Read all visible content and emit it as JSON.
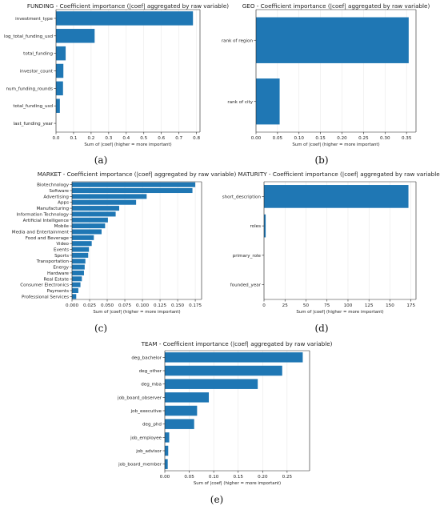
{
  "figure": {
    "bar_color": "#1f77b4",
    "captions": [
      "(a)",
      "(b)",
      "(c)",
      "(d)",
      "(e)"
    ]
  },
  "chart_data": [
    {
      "type": "bar",
      "orientation": "horizontal",
      "title": "FUNDING - Coefficient importance (|coef| aggregated by raw variable)",
      "xlabel": "Sum of |coef| (higher = more important)",
      "ylabel": "",
      "categories": [
        "investment_type",
        "log_total_funding_usd",
        "total_funding",
        "investor_count",
        "num_funding_rounds",
        "total_funding_usd",
        "last_funding_year"
      ],
      "values": [
        0.78,
        0.22,
        0.055,
        0.042,
        0.04,
        0.022,
        0.0
      ],
      "xlim": [
        0,
        0.82
      ],
      "xticks": [
        0.0,
        0.1,
        0.2,
        0.3,
        0.4,
        0.5,
        0.6,
        0.7,
        0.8
      ],
      "xtick_labels": [
        "0.0",
        "0.1",
        "0.2",
        "0.3",
        "0.4",
        "0.5",
        "0.6",
        "0.7",
        "0.8"
      ],
      "grid": "x"
    },
    {
      "type": "bar",
      "orientation": "horizontal",
      "title": "GEO - Coefficient importance (|coef| aggregated by raw variable)",
      "xlabel": "Sum of |coef| (higher = more important)",
      "ylabel": "",
      "categories": [
        "rank of region",
        "rank of city"
      ],
      "values": [
        0.355,
        0.055
      ],
      "xlim": [
        0,
        0.372
      ],
      "xticks": [
        0.0,
        0.05,
        0.1,
        0.15,
        0.2,
        0.25,
        0.3,
        0.35
      ],
      "xtick_labels": [
        "0.00",
        "0.05",
        "0.10",
        "0.15",
        "0.20",
        "0.25",
        "0.30",
        "0.35"
      ],
      "grid": "x"
    },
    {
      "type": "bar",
      "orientation": "horizontal",
      "title": "MARKET - Coefficient importance (|coef| aggregated by raw variable)",
      "xlabel": "Sum of |coef| (higher = more important)",
      "ylabel": "",
      "categories": [
        "Biotechnology",
        "Software",
        "Advertising",
        "Apps",
        "Manufacturing",
        "Information Technology",
        "Artificial Intelligence",
        "Mobile",
        "Media and Entertainment",
        "Food and Beverage",
        "Video",
        "Events",
        "Sports",
        "Transportation",
        "Energy",
        "Hardware",
        "Real Estate",
        "Consumer Electronics",
        "Payments",
        "Professional Services"
      ],
      "values": [
        0.175,
        0.171,
        0.106,
        0.091,
        0.067,
        0.062,
        0.051,
        0.047,
        0.042,
        0.031,
        0.028,
        0.024,
        0.023,
        0.019,
        0.018,
        0.017,
        0.014,
        0.012,
        0.009,
        0.006
      ],
      "xlim": [
        0,
        0.184
      ],
      "xticks": [
        0.0,
        0.025,
        0.05,
        0.075,
        0.1,
        0.125,
        0.15,
        0.175
      ],
      "xtick_labels": [
        "0.000",
        "0.025",
        "0.050",
        "0.075",
        "0.100",
        "0.125",
        "0.150",
        "0.175"
      ],
      "grid": "x"
    },
    {
      "type": "bar",
      "orientation": "horizontal",
      "title": "MATURITY - Coefficient importance (|coef| aggregated by raw variable)",
      "xlabel": "Sum of |coef| (higher = more important)",
      "ylabel": "",
      "categories": [
        "short_description",
        "roles",
        "primary_role",
        "founded_year"
      ],
      "values": [
        172,
        2.0,
        0.0,
        0.0
      ],
      "xlim": [
        0,
        181
      ],
      "xticks": [
        0,
        25,
        50,
        75,
        100,
        125,
        150,
        175
      ],
      "xtick_labels": [
        "0",
        "25",
        "50",
        "75",
        "100",
        "125",
        "150",
        "175"
      ],
      "grid": "x"
    },
    {
      "type": "bar",
      "orientation": "horizontal",
      "title": "TEAM - Coefficient importance (|coef| aggregated by raw variable)",
      "xlabel": "Sum of |coef| (higher = more important)",
      "ylabel": "",
      "categories": [
        "deg_bachelor",
        "deg_other",
        "deg_mba",
        "job_board_observer",
        "job_executive",
        "deg_phd",
        "job_employee",
        "job_advisor",
        "job_board_member"
      ],
      "values": [
        0.282,
        0.24,
        0.19,
        0.09,
        0.066,
        0.06,
        0.009,
        0.007,
        0.006
      ],
      "xlim": [
        0,
        0.296
      ],
      "xticks": [
        0.0,
        0.05,
        0.1,
        0.15,
        0.2,
        0.25
      ],
      "xtick_labels": [
        "0.00",
        "0.05",
        "0.10",
        "0.15",
        "0.20",
        "0.25"
      ],
      "grid": "x"
    }
  ]
}
